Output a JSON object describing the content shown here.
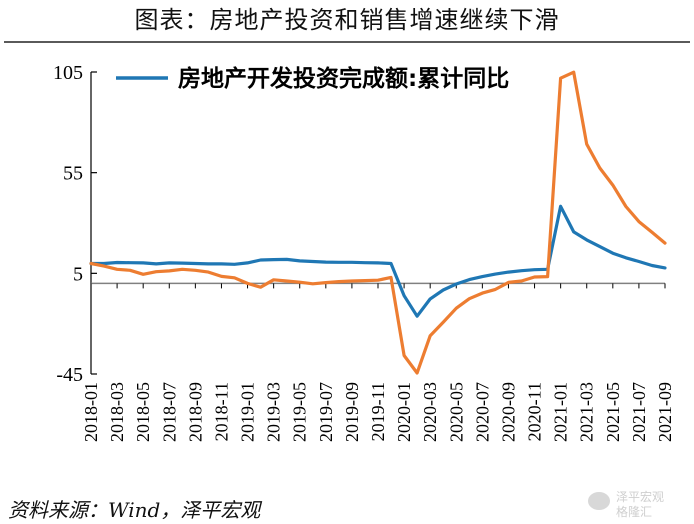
{
  "header": {
    "title": "图表：房地产投资和销售增速继续下滑"
  },
  "footer": {
    "source": "资料来源：Wind，泽平宏观"
  },
  "watermark": {
    "line1": "泽平宏观",
    "line2": "格隆汇"
  },
  "colors": {
    "investment": "#1f77b4",
    "sales": "#ed7d31",
    "axis": "#000000",
    "zero_line": "#808080"
  },
  "chart_data": {
    "type": "line",
    "title": "",
    "xlabel": "",
    "ylabel": "",
    "ylim": [
      -45,
      105
    ],
    "yticks": [
      -45,
      5,
      55,
      105
    ],
    "grid": false,
    "legend_position": "top",
    "x": [
      "2018-01",
      "2018-02",
      "2018-03",
      "2018-04",
      "2018-05",
      "2018-06",
      "2018-07",
      "2018-08",
      "2018-09",
      "2018-10",
      "2018-11",
      "2018-12",
      "2019-01",
      "2019-02",
      "2019-03",
      "2019-04",
      "2019-05",
      "2019-06",
      "2019-07",
      "2019-08",
      "2019-09",
      "2019-10",
      "2019-11",
      "2019-12",
      "2020-01",
      "2020-02",
      "2020-03",
      "2020-04",
      "2020-05",
      "2020-06",
      "2020-07",
      "2020-08",
      "2020-09",
      "2020-10",
      "2020-11",
      "2020-12",
      "2021-01",
      "2021-02",
      "2021-03",
      "2021-04",
      "2021-05",
      "2021-06",
      "2021-07",
      "2021-08",
      "2021-09"
    ],
    "xtick_labels": [
      "2018-01",
      "2018-03",
      "2018-05",
      "2018-07",
      "2018-09",
      "2018-11",
      "2019-01",
      "2019-03",
      "2019-05",
      "2019-07",
      "2019-09",
      "2019-11",
      "2020-01",
      "2020-03",
      "2020-05",
      "2020-07",
      "2020-09",
      "2020-11",
      "2021-01",
      "2021-03",
      "2021-05",
      "2021-07",
      "2021-09"
    ],
    "series": [
      {
        "name": "房地产开发投资完成额:累计同比",
        "values": [
          9.9,
          9.9,
          10.4,
          10.3,
          10.2,
          9.7,
          10.2,
          10.1,
          9.9,
          9.7,
          9.7,
          9.5,
          10.2,
          11.6,
          11.8,
          11.9,
          11.2,
          10.9,
          10.6,
          10.5,
          10.5,
          10.3,
          10.2,
          9.9,
          -6.1,
          -16.3,
          -7.7,
          -3.3,
          -0.3,
          1.9,
          3.4,
          4.6,
          5.6,
          6.3,
          6.8,
          7.0,
          38.3,
          25.6,
          21.6,
          18.3,
          15.0,
          12.7,
          10.9,
          8.9,
          7.7
        ]
      },
      {
        "name": "",
        "values": [
          9.9,
          8.6,
          7.0,
          6.5,
          4.5,
          5.8,
          6.2,
          7.0,
          6.5,
          5.6,
          3.5,
          2.8,
          0.0,
          -1.9,
          1.8,
          1.2,
          0.6,
          -0.2,
          0.4,
          0.9,
          1.2,
          1.4,
          1.6,
          3.0,
          -35.8,
          -44.5,
          -26.0,
          -19.3,
          -12.3,
          -7.6,
          -4.8,
          -3.0,
          0.5,
          1.2,
          3.2,
          3.4,
          101.9,
          104.9,
          69.2,
          57.3,
          48.8,
          38.2,
          30.7,
          25.4,
          20.0
        ]
      }
    ]
  }
}
